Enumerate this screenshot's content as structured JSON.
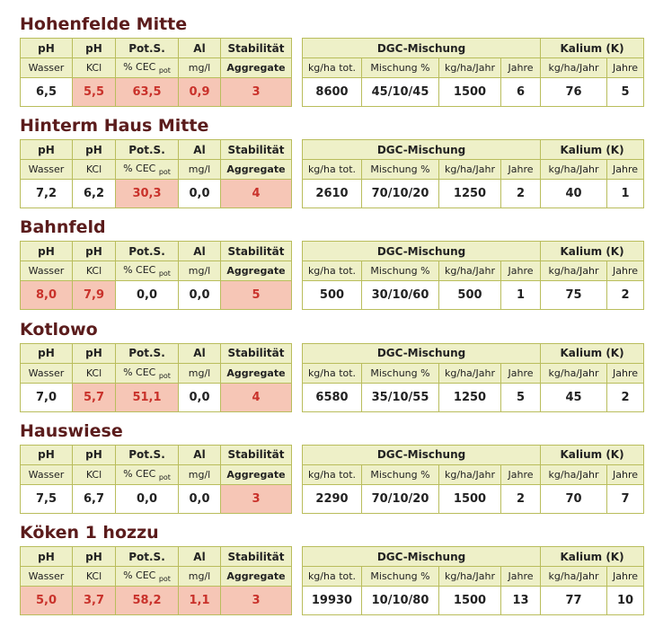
{
  "left_header": {
    "labels": [
      "pH",
      "pH",
      "Pot.S.",
      "Al",
      "Stabilität"
    ],
    "units": [
      "Wasser",
      "KCl",
      {
        "text": "% CEC",
        "sub": "pot"
      },
      "mg/l",
      "Aggregate"
    ]
  },
  "right_header": {
    "groups": [
      "DGC-Mischung",
      "Kalium (K)"
    ],
    "group_spans": [
      4,
      2
    ],
    "units": [
      "kg/ha tot.",
      "Mischung %",
      "kg/ha/Jahr",
      "Jahre",
      "kg/ha/Jahr",
      "Jahre"
    ]
  },
  "sections": [
    {
      "title": "Hohenfelde Mitte",
      "soil": [
        "6,5",
        "5,5",
        "63,5",
        "0,9",
        "3"
      ],
      "soil_warning": [
        false,
        true,
        true,
        true,
        true
      ],
      "mix": [
        "8600",
        "45/10/45",
        "1500",
        "6",
        "76",
        "5"
      ]
    },
    {
      "title": "Hinterm Haus Mitte",
      "soil": [
        "7,2",
        "6,2",
        "30,3",
        "0,0",
        "4"
      ],
      "soil_warning": [
        false,
        false,
        true,
        false,
        true
      ],
      "mix": [
        "2610",
        "70/10/20",
        "1250",
        "2",
        "40",
        "1"
      ]
    },
    {
      "title": "Bahnfeld",
      "soil": [
        "8,0",
        "7,9",
        "0,0",
        "0,0",
        "5"
      ],
      "soil_warning": [
        true,
        true,
        false,
        false,
        true
      ],
      "mix": [
        "500",
        "30/10/60",
        "500",
        "1",
        "75",
        "2"
      ]
    },
    {
      "title": "Kotlowo",
      "soil": [
        "7,0",
        "5,7",
        "51,1",
        "0,0",
        "4"
      ],
      "soil_warning": [
        false,
        true,
        true,
        false,
        true
      ],
      "mix": [
        "6580",
        "35/10/55",
        "1250",
        "5",
        "45",
        "2"
      ]
    },
    {
      "title": "Hauswiese",
      "soil": [
        "7,5",
        "6,7",
        "0,0",
        "0,0",
        "3"
      ],
      "soil_warning": [
        false,
        false,
        false,
        false,
        true
      ],
      "mix": [
        "2290",
        "70/10/20",
        "1500",
        "2",
        "70",
        "7"
      ]
    },
    {
      "title": "Köken 1 hozzu",
      "soil": [
        "5,0",
        "3,7",
        "58,2",
        "1,1",
        "3"
      ],
      "soil_warning": [
        true,
        true,
        true,
        true,
        true
      ],
      "mix": [
        "19930",
        "10/10/80",
        "1500",
        "13",
        "77",
        "10"
      ]
    }
  ]
}
